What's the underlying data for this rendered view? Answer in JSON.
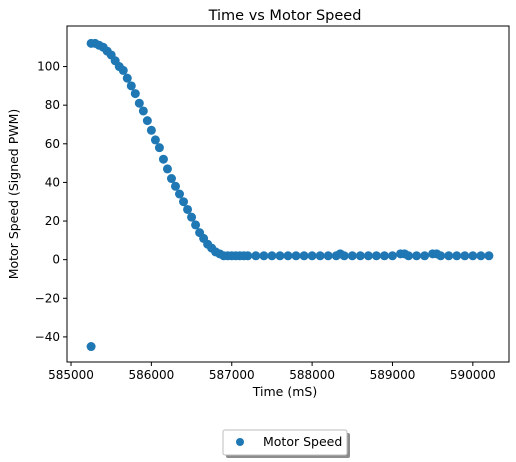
{
  "chart_data": {
    "type": "scatter",
    "title": "Time vs Motor Speed",
    "xlabel": "Time (mS)",
    "ylabel": "Motor Speed (Signed PWM)",
    "xlim": [
      584950,
      590450
    ],
    "ylim": [
      -53,
      121
    ],
    "xticks": [
      585000,
      586000,
      587000,
      588000,
      589000,
      590000
    ],
    "xtick_labels": [
      "585000",
      "586000",
      "587000",
      "588000",
      "589000",
      "590000"
    ],
    "yticks": [
      -40,
      -20,
      0,
      20,
      40,
      60,
      80,
      100
    ],
    "ytick_labels": [
      "−40",
      "−20",
      "0",
      "20",
      "40",
      "60",
      "80",
      "100"
    ],
    "grid": false,
    "legend": {
      "placement": "bottom-center",
      "entries": [
        "Motor Speed"
      ]
    },
    "series": [
      {
        "name": "Motor Speed",
        "color": "#1f77b4",
        "x": [
          585250,
          585250,
          585300,
          585350,
          585400,
          585450,
          585500,
          585550,
          585600,
          585650,
          585700,
          585750,
          585800,
          585850,
          585900,
          585950,
          586000,
          586050,
          586100,
          586150,
          586200,
          586250,
          586300,
          586350,
          586400,
          586450,
          586500,
          586550,
          586600,
          586650,
          586700,
          586750,
          586800,
          586850,
          586900,
          586950,
          587000,
          587050,
          587100,
          587150,
          587200,
          587300,
          587400,
          587500,
          587600,
          587700,
          587800,
          587900,
          588000,
          588100,
          588200,
          588300,
          588350,
          588400,
          588500,
          588600,
          588700,
          588800,
          588900,
          589000,
          589100,
          589150,
          589200,
          589300,
          589400,
          589500,
          589550,
          589600,
          589700,
          589800,
          589900,
          590000,
          590100,
          590200
        ],
        "y": [
          -45,
          112,
          112,
          111,
          110,
          108,
          106,
          103,
          100,
          98,
          94,
          90,
          86,
          81,
          77,
          72,
          67,
          62,
          58,
          52,
          47,
          42,
          38,
          34,
          30,
          26,
          22,
          18,
          14,
          11,
          8,
          6,
          4,
          3,
          2,
          2,
          2,
          2,
          2,
          2,
          2,
          2,
          2,
          2,
          2,
          2,
          2,
          2,
          2,
          2,
          2,
          2,
          3,
          2,
          2,
          2,
          2,
          2,
          2,
          2,
          3,
          3,
          2,
          2,
          2,
          3,
          3,
          2,
          2,
          2,
          2,
          2,
          2,
          2
        ]
      }
    ]
  }
}
